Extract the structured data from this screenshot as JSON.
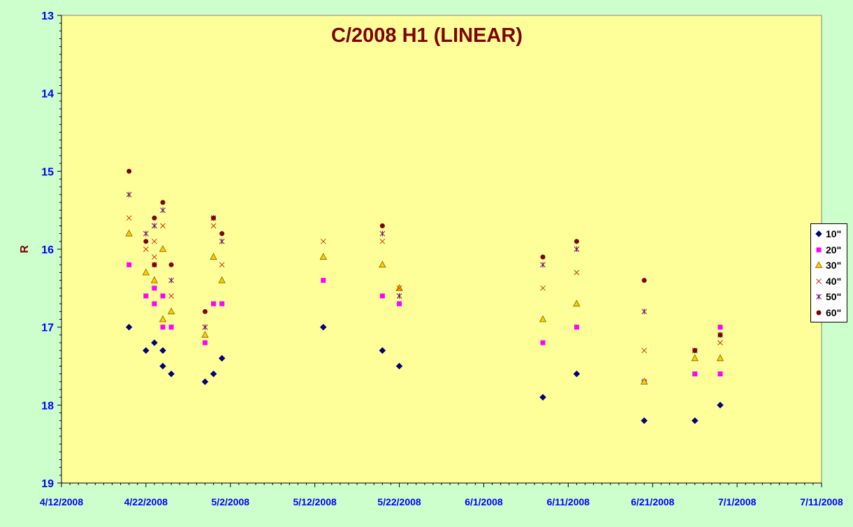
{
  "chart_data": {
    "type": "scatter",
    "title": "C/2008 H1 (LINEAR)",
    "ylabel": "R",
    "xlabel": "",
    "xlim": [
      "2008-04-12",
      "2008-07-11"
    ],
    "ylim": [
      13,
      19
    ],
    "y_inverted": true,
    "grid": false,
    "legend_position": "right",
    "x_ticks": [
      "4/12/2008",
      "4/22/2008",
      "5/2/2008",
      "5/12/2008",
      "5/22/2008",
      "6/1/2008",
      "6/11/2008",
      "6/21/2008",
      "7/1/2008",
      "7/11/2008"
    ],
    "y_ticks": [
      "13",
      "14",
      "15",
      "16",
      "17",
      "18",
      "19"
    ],
    "plot_bg": "#ffff99",
    "page_bg": "#ccffcc",
    "series": [
      {
        "name": "10\"",
        "marker": "diamond",
        "color": "#000080",
        "x": [
          "2008-04-20",
          "2008-04-22",
          "2008-04-23",
          "2008-04-24",
          "2008-04-24",
          "2008-04-25",
          "2008-04-29",
          "2008-04-30",
          "2008-05-01",
          "2008-05-13",
          "2008-05-20",
          "2008-05-22",
          "2008-06-08",
          "2008-06-12",
          "2008-06-20",
          "2008-06-26",
          "2008-06-29"
        ],
        "y": [
          17.0,
          17.3,
          17.2,
          17.3,
          17.5,
          17.6,
          17.7,
          17.6,
          17.4,
          17.0,
          17.3,
          17.5,
          17.9,
          17.6,
          18.2,
          18.2,
          18.0
        ]
      },
      {
        "name": "20\"",
        "marker": "square",
        "color": "#ff00ff",
        "x": [
          "2008-04-20",
          "2008-04-22",
          "2008-04-23",
          "2008-04-23",
          "2008-04-24",
          "2008-04-24",
          "2008-04-25",
          "2008-04-29",
          "2008-04-30",
          "2008-05-01",
          "2008-05-13",
          "2008-05-20",
          "2008-05-22",
          "2008-06-08",
          "2008-06-12",
          "2008-06-20",
          "2008-06-26",
          "2008-06-29",
          "2008-06-29"
        ],
        "y": [
          16.2,
          16.6,
          16.5,
          16.7,
          16.6,
          17.0,
          17.0,
          17.2,
          16.7,
          16.7,
          16.4,
          16.6,
          16.7,
          17.2,
          17.0,
          17.7,
          17.6,
          17.6,
          17.0
        ]
      },
      {
        "name": "30\"",
        "marker": "triangle",
        "color": "#ffcc00",
        "x": [
          "2008-04-20",
          "2008-04-22",
          "2008-04-23",
          "2008-04-24",
          "2008-04-24",
          "2008-04-25",
          "2008-04-29",
          "2008-04-30",
          "2008-05-01",
          "2008-05-13",
          "2008-05-20",
          "2008-05-22",
          "2008-06-08",
          "2008-06-12",
          "2008-06-20",
          "2008-06-26",
          "2008-06-29"
        ],
        "y": [
          15.8,
          16.3,
          16.4,
          16.0,
          16.9,
          16.8,
          17.1,
          16.1,
          16.4,
          16.1,
          16.2,
          16.5,
          16.9,
          16.7,
          17.7,
          17.4,
          17.4
        ]
      },
      {
        "name": "40\"",
        "marker": "x",
        "color": "#cc3300",
        "x": [
          "2008-04-20",
          "2008-04-22",
          "2008-04-23",
          "2008-04-23",
          "2008-04-24",
          "2008-04-25",
          "2008-04-29",
          "2008-04-30",
          "2008-05-01",
          "2008-05-13",
          "2008-05-20",
          "2008-05-22",
          "2008-06-08",
          "2008-06-12",
          "2008-06-20",
          "2008-06-26",
          "2008-06-29"
        ],
        "y": [
          15.6,
          16.0,
          15.9,
          16.1,
          15.7,
          16.6,
          17.0,
          15.7,
          16.2,
          15.9,
          15.9,
          16.5,
          16.5,
          16.3,
          17.3,
          17.3,
          17.2
        ]
      },
      {
        "name": "50\"",
        "marker": "star",
        "color": "#660066",
        "x": [
          "2008-04-20",
          "2008-04-22",
          "2008-04-23",
          "2008-04-23",
          "2008-04-24",
          "2008-04-25",
          "2008-04-29",
          "2008-04-30",
          "2008-05-01",
          "2008-05-20",
          "2008-05-22",
          "2008-06-08",
          "2008-06-12",
          "2008-06-20",
          "2008-06-26",
          "2008-06-29"
        ],
        "y": [
          15.3,
          15.8,
          15.7,
          16.2,
          15.5,
          16.4,
          17.0,
          15.6,
          15.9,
          15.8,
          16.6,
          16.2,
          16.0,
          16.8,
          17.3,
          17.1
        ]
      },
      {
        "name": "60\"",
        "marker": "circle",
        "color": "#800000",
        "x": [
          "2008-04-20",
          "2008-04-22",
          "2008-04-23",
          "2008-04-23",
          "2008-04-24",
          "2008-04-25",
          "2008-04-29",
          "2008-04-30",
          "2008-05-01",
          "2008-05-20",
          "2008-06-08",
          "2008-06-12",
          "2008-06-20",
          "2008-06-26",
          "2008-06-29"
        ],
        "y": [
          15.0,
          15.9,
          15.6,
          16.2,
          15.4,
          16.2,
          16.8,
          15.6,
          15.8,
          15.7,
          16.1,
          15.9,
          16.4,
          17.3,
          17.1
        ]
      }
    ]
  }
}
